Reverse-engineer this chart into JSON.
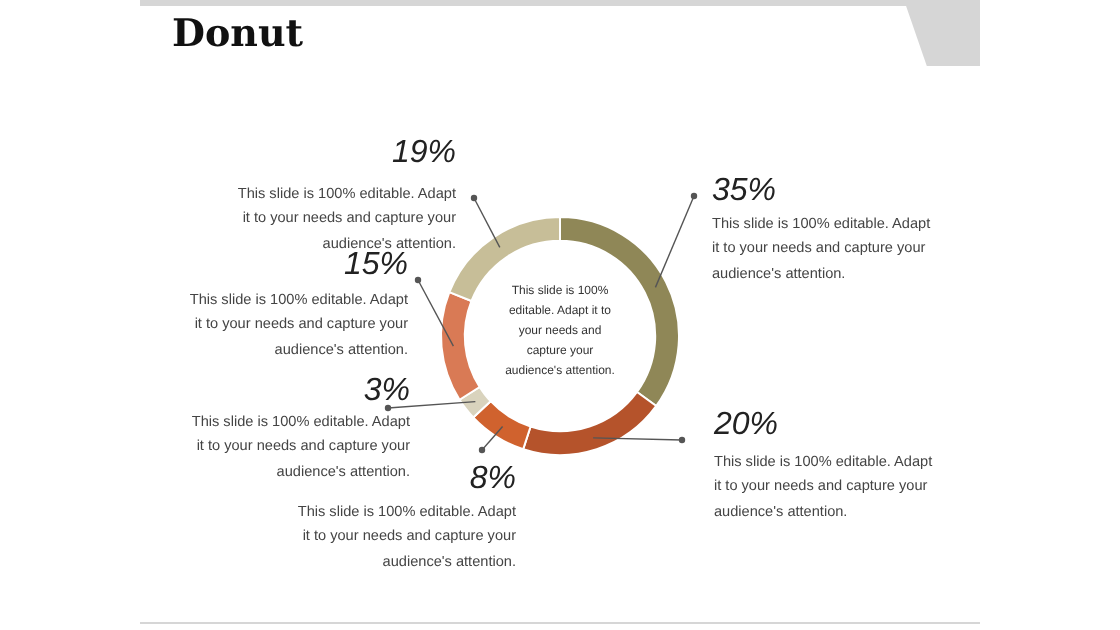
{
  "chart_data": {
    "type": "donut",
    "title": "Donut",
    "categories": [
      null,
      null,
      null,
      null,
      null,
      null
    ],
    "values": [
      35,
      20,
      8,
      3,
      15,
      19
    ],
    "value_labels": [
      "35%",
      "20%",
      "8%",
      "3%",
      "15%",
      "19%"
    ],
    "colors": [
      "#8f8757",
      "#b5532b",
      "#d0622e",
      "#d9d3bd",
      "#d97a55",
      "#c7be98"
    ],
    "legend": false,
    "annotations": [
      "This slide is 100% editable. Adapt it to your needs and capture your audience's attention.",
      "This slide is 100% editable. Adapt it to your needs and capture your audience's attention.",
      "This slide is 100% editable. Adapt it to your needs and capture your audience's attention.",
      "This slide is 100% editable. Adapt it to your needs and capture your audience's attention.",
      "This slide is 100% editable. Adapt it to your needs and capture your audience's attention.",
      "This slide is 100% editable. Adapt it to your needs and capture your audience's attention.",
      "This slide is 100% editable. Adapt it to your needs and capture your audience's attention."
    ]
  }
}
